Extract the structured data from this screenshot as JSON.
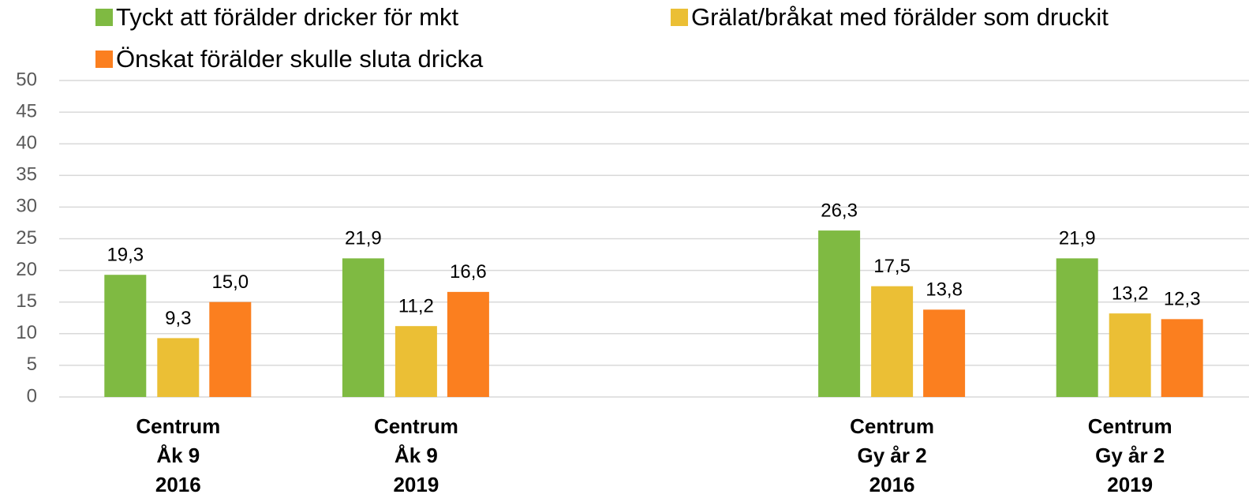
{
  "chart_data": {
    "type": "bar",
    "categories": [
      "Centrum\nÅk 9\n2016",
      "Centrum\nÅk 9\n2019",
      null,
      "Centrum\nGy år 2\n2016",
      "Centrum\nGy år 2\n2019"
    ],
    "series": [
      {
        "name": "Tyckt att förälder dricker för mkt",
        "color": "#7fba42",
        "values": [
          19.3,
          21.9,
          null,
          26.3,
          21.9
        ],
        "value_labels": [
          "19,3",
          "21,9",
          null,
          "26,3",
          "21,9"
        ]
      },
      {
        "name": "Grälat/bråkat med förälder som druckit",
        "color": "#ebbf35",
        "values": [
          9.3,
          11.2,
          null,
          17.5,
          13.2
        ],
        "value_labels": [
          "9,3",
          "11,2",
          null,
          "17,5",
          "13,2"
        ]
      },
      {
        "name": "Önskat förälder skulle sluta dricka",
        "color": "#fb7f1f",
        "values": [
          15.0,
          16.6,
          null,
          13.8,
          12.3
        ],
        "value_labels": [
          "15,0",
          "16,6",
          null,
          "13,8",
          "12,3"
        ]
      }
    ],
    "ylim": [
      0,
      50
    ],
    "yticks": [
      0,
      5,
      10,
      15,
      20,
      25,
      30,
      35,
      40,
      45,
      50
    ],
    "grid": true,
    "legend": "top"
  }
}
